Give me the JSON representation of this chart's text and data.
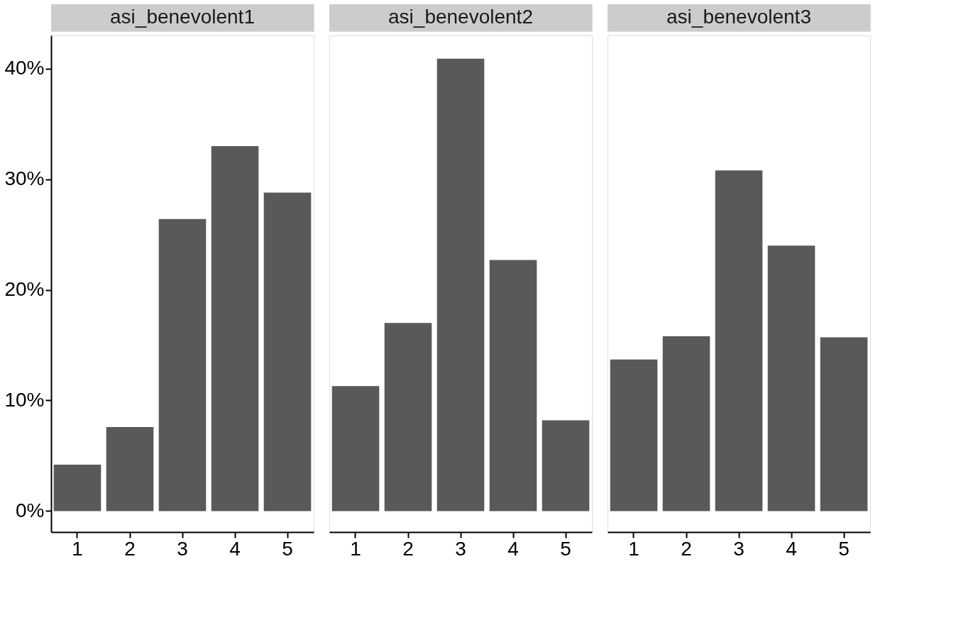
{
  "chart_data": [
    {
      "type": "bar",
      "title": "asi_benevolent1",
      "categories": [
        "1",
        "2",
        "3",
        "4",
        "5"
      ],
      "values": [
        4.2,
        7.6,
        26.4,
        33.0,
        28.8
      ],
      "color": "#595959",
      "ylim": [
        -1.9,
        43.0
      ],
      "yticks": [
        {
          "value": 0,
          "label": "0%"
        },
        {
          "value": 10,
          "label": "10%"
        },
        {
          "value": 20,
          "label": "20%"
        },
        {
          "value": 30,
          "label": "30%"
        },
        {
          "value": 40,
          "label": "40%"
        }
      ],
      "grid": false
    },
    {
      "type": "bar",
      "title": "asi_benevolent2",
      "categories": [
        "1",
        "2",
        "3",
        "4",
        "5"
      ],
      "values": [
        11.3,
        17.0,
        40.9,
        22.7,
        8.2
      ],
      "color": "#595959",
      "ylim": [
        -1.9,
        43.0
      ],
      "grid": false,
      "tick_labels": "x"
    },
    {
      "type": "bar",
      "title": "asi_benevolent3",
      "categories": [
        "1",
        "2",
        "3",
        "4",
        "5"
      ],
      "values": [
        13.7,
        15.8,
        30.8,
        24.0,
        15.7
      ],
      "color": "#595959",
      "ylim": [
        -1.9,
        43.0
      ],
      "grid": false,
      "tick_labels": "x"
    }
  ]
}
